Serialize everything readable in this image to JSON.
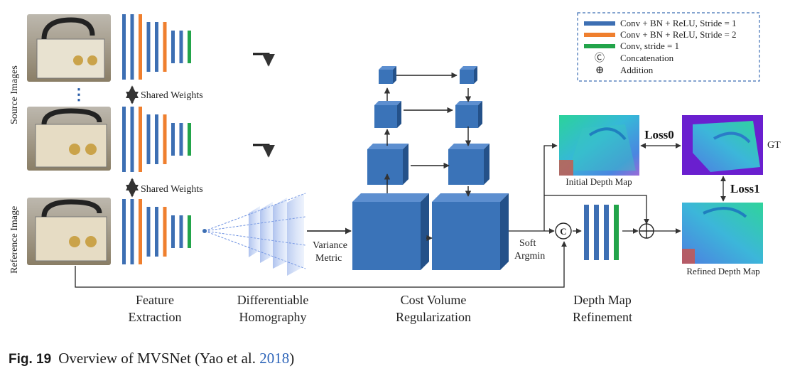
{
  "diagram": {
    "side_labels": {
      "source": "Source Images",
      "reference": "Reference Image"
    },
    "dots": "⋮",
    "shared_weights": [
      "Shared Weights",
      "Shared Weights"
    ],
    "legend": {
      "items": [
        {
          "text": "Conv + BN + ReLU, Stride = 1",
          "color": "#3d6fb3"
        },
        {
          "text": "Conv + BN + ReLU, Stride = 2",
          "color": "#ef7f2e"
        },
        {
          "text": "Conv, stride = 1",
          "color": "#22a44a"
        },
        {
          "text": "Concatenation",
          "symbol": "Ⓒ"
        },
        {
          "text": "Addition",
          "symbol": "⊕"
        }
      ]
    },
    "variance_metric": [
      "Variance",
      "Metric"
    ],
    "soft_argmin": [
      "Soft",
      "Argmin"
    ],
    "concat_symbol": "C",
    "depth_labels": {
      "initial": "Initial Depth Map",
      "refined": "Refined Depth Map",
      "gt": "GT"
    },
    "losses": {
      "loss0": "Loss0",
      "loss1": "Loss1"
    },
    "stages": {
      "feature": [
        "Feature",
        "Extraction"
      ],
      "homography": [
        "Differentiable",
        "Homography"
      ],
      "cost": [
        "Cost Volume",
        "Regularization"
      ],
      "refine": [
        "Depth Map",
        "Refinement"
      ]
    },
    "colors": {
      "blue": "#3d6fb3",
      "orange": "#ef7f2e",
      "green": "#22a44a",
      "cube": "#3a73b8",
      "cube_dark": "#245189"
    }
  },
  "caption": {
    "label": "Fig. 19",
    "text": "Overview of MVSNet (Yao et al. ",
    "year": "2018",
    "close": ")"
  }
}
